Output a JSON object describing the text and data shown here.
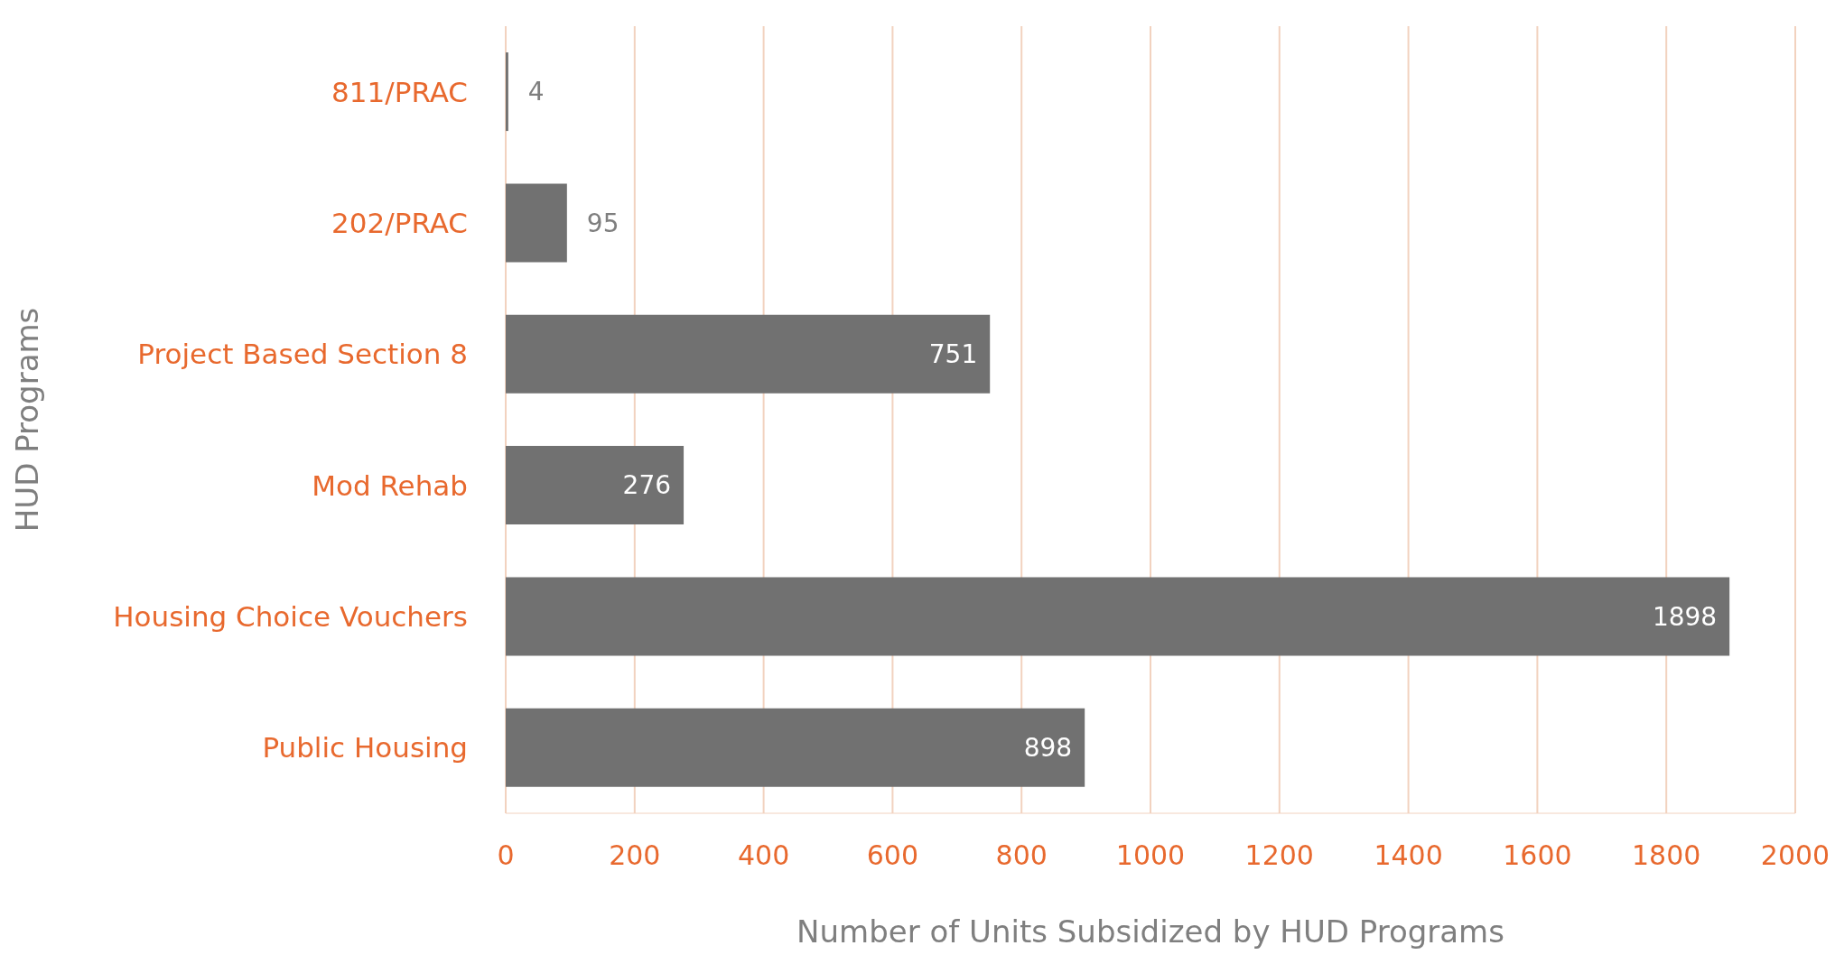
{
  "chart_data": {
    "type": "bar",
    "orientation": "horizontal",
    "categories": [
      "811/PRAC",
      "202/PRAC",
      "Project Based Section 8",
      "Mod Rehab",
      "Housing Choice Vouchers",
      "Public Housing"
    ],
    "values": [
      4,
      95,
      751,
      276,
      1898,
      898
    ],
    "color": "#717171",
    "xlabel": "Number of Units Subsidized by HUD Programs",
    "ylabel": "HUD Programs",
    "xlim": [
      0,
      2000
    ],
    "xticks": [
      0,
      200,
      400,
      600,
      800,
      1000,
      1200,
      1400,
      1600,
      1800,
      2000
    ],
    "grid": "x",
    "data_labels": true
  }
}
